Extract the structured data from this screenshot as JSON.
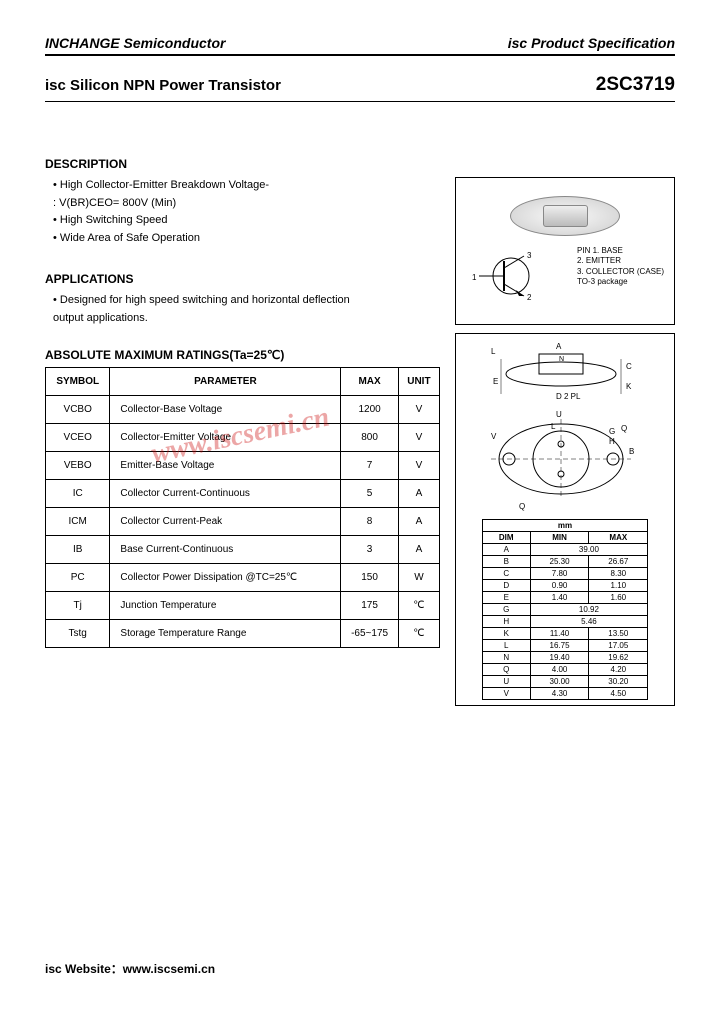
{
  "header": {
    "company": "INCHANGE Semiconductor",
    "spec_label": "isc Product Specification"
  },
  "title": {
    "product_type": "isc Silicon NPN Power Transistor",
    "part_number": "2SC3719"
  },
  "description": {
    "heading": "DESCRIPTION",
    "items": [
      "• High Collector-Emitter Breakdown Voltage-",
      ": V(BR)CEO= 800V (Min)",
      "• High Switching Speed",
      "• Wide Area of Safe Operation"
    ]
  },
  "applications": {
    "heading": "APPLICATIONS",
    "items": [
      "• Designed for high speed switching and horizontal deflection",
      "  output applications."
    ]
  },
  "ratings": {
    "heading": "ABSOLUTE MAXIMUM RATINGS(Ta=25℃)",
    "columns": [
      "SYMBOL",
      "PARAMETER",
      "MAX",
      "UNIT"
    ],
    "rows": [
      {
        "sym": "VCBO",
        "param": "Collector-Base Voltage",
        "max": "1200",
        "unit": "V"
      },
      {
        "sym": "VCEO",
        "param": "Collector-Emitter Voltage",
        "max": "800",
        "unit": "V"
      },
      {
        "sym": "VEBO",
        "param": "Emitter-Base Voltage",
        "max": "7",
        "unit": "V"
      },
      {
        "sym": "IC",
        "param": "Collector Current-Continuous",
        "max": "5",
        "unit": "A"
      },
      {
        "sym": "ICM",
        "param": "Collector Current-Peak",
        "max": "8",
        "unit": "A"
      },
      {
        "sym": "IB",
        "param": "Base Current-Continuous",
        "max": "3",
        "unit": "A"
      },
      {
        "sym": "PC",
        "param": "Collector Power Dissipation @TC=25℃",
        "max": "150",
        "unit": "W"
      },
      {
        "sym": "Tj",
        "param": "Junction Temperature",
        "max": "175",
        "unit": "℃"
      },
      {
        "sym": "Tstg",
        "param": "Storage Temperature Range",
        "max": "-65~175",
        "unit": "℃"
      }
    ]
  },
  "pinout": {
    "pin1": "PIN 1. BASE",
    "pin2": "2. EMITTER",
    "pin3": "3. COLLECTOR (CASE)",
    "pkg": "TO-3 package"
  },
  "dimensions": {
    "unit_header": "mm",
    "columns": [
      "DIM",
      "MIN",
      "MAX"
    ],
    "rows": [
      {
        "dim": "A",
        "min": "39.00",
        "max": ""
      },
      {
        "dim": "B",
        "min": "25.30",
        "max": "26.67"
      },
      {
        "dim": "C",
        "min": "7.80",
        "max": "8.30"
      },
      {
        "dim": "D",
        "min": "0.90",
        "max": "1.10"
      },
      {
        "dim": "E",
        "min": "1.40",
        "max": "1.60"
      },
      {
        "dim": "G",
        "min": "10.92",
        "max": ""
      },
      {
        "dim": "H",
        "min": "5.46",
        "max": ""
      },
      {
        "dim": "K",
        "min": "11.40",
        "max": "13.50"
      },
      {
        "dim": "L",
        "min": "16.75",
        "max": "17.05"
      },
      {
        "dim": "N",
        "min": "19.40",
        "max": "19.62"
      },
      {
        "dim": "Q",
        "min": "4.00",
        "max": "4.20"
      },
      {
        "dim": "U",
        "min": "30.00",
        "max": "30.20"
      },
      {
        "dim": "V",
        "min": "4.30",
        "max": "4.50"
      }
    ]
  },
  "watermark": "www.iscsemi.cn",
  "footer": "isc Website：www.iscsemi.cn",
  "colors": {
    "text": "#000000",
    "watermark": "rgba(200,0,0,0.35)",
    "bg": "#ffffff",
    "border": "#000000"
  }
}
